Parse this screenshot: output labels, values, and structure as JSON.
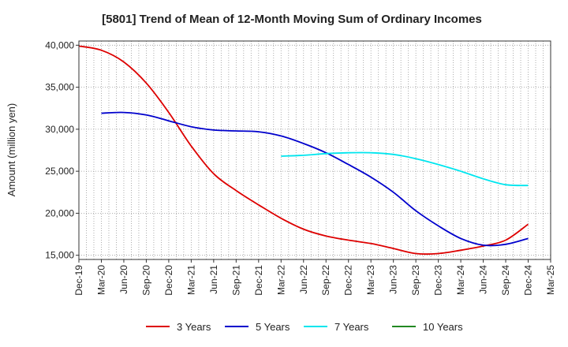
{
  "chart_data": {
    "type": "line",
    "title": "[5801]  Trend of Mean of 12-Month Moving Sum of Ordinary Incomes",
    "xlabel": "",
    "ylabel": "Amount (million yen)",
    "ylim": [
      14500,
      40500
    ],
    "y_ticks": [
      15000,
      20000,
      25000,
      30000,
      35000,
      40000
    ],
    "y_tick_labels": [
      "15,000",
      "20,000",
      "25,000",
      "30,000",
      "35,000",
      "40,000"
    ],
    "x_start": "Dec-19",
    "x_end": "Mar-25",
    "x_tick_labels": [
      "Dec-19",
      "Mar-20",
      "Jun-20",
      "Sep-20",
      "Dec-20",
      "Mar-21",
      "Jun-21",
      "Sep-21",
      "Dec-21",
      "Mar-22",
      "Jun-22",
      "Sep-22",
      "Dec-22",
      "Mar-23",
      "Jun-23",
      "Sep-23",
      "Dec-23",
      "Mar-24",
      "Jun-24",
      "Sep-24",
      "Dec-24",
      "Mar-25"
    ],
    "grid": true,
    "legend_position": "bottom",
    "series": [
      {
        "name": "3 Years",
        "color": "#dd0000",
        "points": [
          [
            0,
            39900
          ],
          [
            3,
            39400
          ],
          [
            6,
            38000
          ],
          [
            9,
            35500
          ],
          [
            12,
            32000
          ],
          [
            15,
            28000
          ],
          [
            18,
            24700
          ],
          [
            21,
            22700
          ],
          [
            24,
            21000
          ],
          [
            27,
            19400
          ],
          [
            30,
            18100
          ],
          [
            33,
            17300
          ],
          [
            36,
            16800
          ],
          [
            39,
            16400
          ],
          [
            42,
            15800
          ],
          [
            45,
            15200
          ],
          [
            48,
            15200
          ],
          [
            51,
            15600
          ],
          [
            54,
            16100
          ],
          [
            57,
            16800
          ],
          [
            60,
            18700
          ]
        ]
      },
      {
        "name": "5 Years",
        "color": "#0000cc",
        "points": [
          [
            3,
            31900
          ],
          [
            6,
            32000
          ],
          [
            9,
            31700
          ],
          [
            12,
            31000
          ],
          [
            15,
            30300
          ],
          [
            18,
            29900
          ],
          [
            21,
            29800
          ],
          [
            24,
            29700
          ],
          [
            27,
            29200
          ],
          [
            30,
            28300
          ],
          [
            33,
            27200
          ],
          [
            36,
            25800
          ],
          [
            39,
            24300
          ],
          [
            42,
            22500
          ],
          [
            45,
            20300
          ],
          [
            48,
            18500
          ],
          [
            51,
            17000
          ],
          [
            54,
            16200
          ],
          [
            57,
            16300
          ],
          [
            60,
            17000
          ]
        ]
      },
      {
        "name": "7 Years",
        "color": "#00e5ee",
        "points": [
          [
            27,
            26800
          ],
          [
            30,
            26900
          ],
          [
            33,
            27100
          ],
          [
            36,
            27200
          ],
          [
            39,
            27200
          ],
          [
            42,
            27000
          ],
          [
            45,
            26500
          ],
          [
            48,
            25800
          ],
          [
            51,
            25000
          ],
          [
            54,
            24100
          ],
          [
            57,
            23400
          ],
          [
            60,
            23300
          ]
        ]
      },
      {
        "name": "10 Years",
        "color": "#228822",
        "points": []
      }
    ]
  }
}
